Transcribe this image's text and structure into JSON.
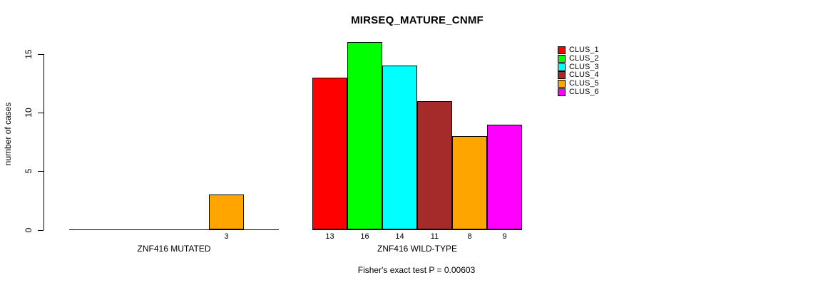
{
  "chart_data": {
    "type": "bar",
    "title": "MIRSEQ_MATURE_CNMF",
    "ylabel": "number of cases",
    "xlabel": "",
    "yticks": [
      0,
      5,
      10,
      15
    ],
    "ylim": [
      0,
      16
    ],
    "grid": false,
    "legend_position": "top-right",
    "axis_color": "#000000",
    "background_color": "#FFFFFF",
    "clusters": [
      {
        "name": "CLUS_1",
        "color": "#FF0000"
      },
      {
        "name": "CLUS_2",
        "color": "#00FF00"
      },
      {
        "name": "CLUS_3",
        "color": "#00FFFF"
      },
      {
        "name": "CLUS_4",
        "color": "#A52A2A"
      },
      {
        "name": "CLUS_5",
        "color": "#FFA500"
      },
      {
        "name": "CLUS_6",
        "color": "#FF00FF"
      }
    ],
    "groups": [
      {
        "label": "ZNF416 MUTATED",
        "values": [
          0,
          0,
          0,
          0,
          3,
          0
        ]
      },
      {
        "label": "ZNF416 WILD-TYPE",
        "values": [
          13,
          16,
          14,
          11,
          8,
          9
        ]
      }
    ],
    "footnote": "Fisher's exact test P = 0.00603"
  }
}
